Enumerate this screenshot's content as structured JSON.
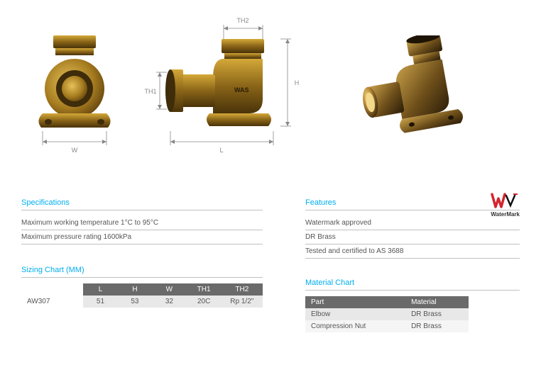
{
  "diagrams": {
    "front": {
      "label_w": "W"
    },
    "side": {
      "label_l": "L",
      "label_h": "H",
      "label_th1": "TH1",
      "label_th2": "TH2",
      "body_text": "WAS"
    }
  },
  "watermark": {
    "label": "WaterMark"
  },
  "specifications": {
    "title": "Specifications",
    "rows": [
      "Maximum working temperature 1°C to 95°C",
      "Maximum pressure rating 1600kPa"
    ]
  },
  "features": {
    "title": "Features",
    "rows": [
      "Watermark approved",
      "DR Brass",
      "Tested and certified to AS 3688"
    ]
  },
  "sizing": {
    "title": "Sizing Chart (MM)",
    "columns": [
      "",
      "L",
      "H",
      "W",
      "TH1",
      "TH2"
    ],
    "rows": [
      [
        "AW307",
        "51",
        "53",
        "32",
        "20C",
        "Rp 1/2\""
      ]
    ],
    "col_widths": [
      "90px",
      "50px",
      "50px",
      "50px",
      "50px",
      "60px"
    ]
  },
  "material": {
    "title": "Material Chart",
    "columns": [
      "Part",
      "Material"
    ],
    "rows": [
      [
        "Elbow",
        "DR Brass"
      ],
      [
        "Compression Nut",
        "DR Brass"
      ]
    ]
  },
  "colors": {
    "accent": "#00aeef",
    "brass_light": "#d4a838",
    "brass_mid": "#a67c1f",
    "brass_dark": "#6e4f12",
    "brass_shade": "#3e2c0a",
    "header_bg": "#6a6a6a",
    "row_bg": "#e8e8e8",
    "row_alt": "#f5f5f5",
    "rule": "#c0c0c0",
    "logo_red": "#d22630"
  }
}
